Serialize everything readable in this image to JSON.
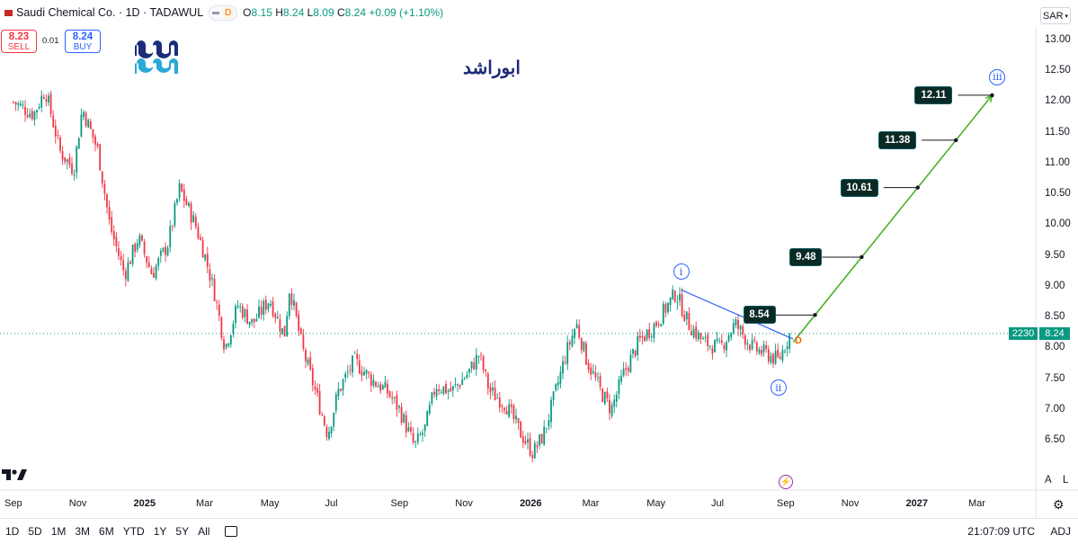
{
  "header": {
    "symbol": "Saudi Chemical Co. · 1D · TADAWUL",
    "d_badge": "D",
    "ohlc": {
      "o_label": "O",
      "o": "8.15",
      "h_label": "H",
      "h": "8.24",
      "l_label": "L",
      "l": "8.09",
      "c_label": "C",
      "c": "8.24",
      "change": "+0.09 (+1.10%)"
    },
    "currency": "SAR"
  },
  "trade": {
    "sell_price": "8.23",
    "sell_label": "SELL",
    "spread": "0.01",
    "buy_price": "8.24",
    "buy_label": "BUY"
  },
  "watermark_text": "ابوراشد",
  "colors": {
    "up": "#089981",
    "down": "#f23645",
    "projection": "#4caf28",
    "trendline": "#2962ff",
    "target_box": "#0b2a25"
  },
  "chart_data": {
    "type": "candlestick",
    "y_ticks": [
      "13.00",
      "12.50",
      "12.00",
      "11.50",
      "11.00",
      "10.50",
      "10.00",
      "9.50",
      "9.00",
      "8.50",
      "8.00",
      "7.50",
      "7.00",
      "6.50"
    ],
    "ylim": [
      6.2,
      13.2
    ],
    "x_ticks": [
      "Sep",
      "Nov",
      "2025",
      "Mar",
      "May",
      "Jul",
      "Sep",
      "Nov",
      "2026",
      "Mar",
      "May",
      "Jul",
      "Sep",
      "Nov",
      "2027",
      "Mar"
    ],
    "bold_x_ticks": [
      "2025",
      "2026",
      "2027"
    ],
    "x_tick_dates": [
      "2024-09",
      "2024-11",
      "2025-01",
      "2025-03",
      "2025-05",
      "2025-07",
      "2025-09",
      "2025-11",
      "2026-01",
      "2026-03",
      "2026-05",
      "2026-07",
      "2026-09",
      "2026-11",
      "2027-01",
      "2027-03"
    ],
    "price_path": [
      [
        "2024-09",
        12.0
      ],
      [
        "2024-09-20",
        11.8
      ],
      [
        "2024-10-01",
        12.2
      ],
      [
        "2024-10-15",
        11.2
      ],
      [
        "2024-10-28",
        10.9
      ],
      [
        "2024-11-05",
        11.9
      ],
      [
        "2024-11-20",
        11.2
      ],
      [
        "2024-12-01",
        10.0
      ],
      [
        "2024-12-15",
        9.2
      ],
      [
        "2024-12-28",
        9.8
      ],
      [
        "2025-01-10",
        9.2
      ],
      [
        "2025-01-25",
        9.7
      ],
      [
        "2025-02-05",
        10.6
      ],
      [
        "2025-02-20",
        10.0
      ],
      [
        "2025-03-01",
        9.5
      ],
      [
        "2025-03-10",
        8.9
      ],
      [
        "2025-03-20",
        8.0
      ],
      [
        "2025-04-01",
        8.7
      ],
      [
        "2025-04-15",
        8.4
      ],
      [
        "2025-05-01",
        8.8
      ],
      [
        "2025-05-15",
        8.2
      ],
      [
        "2025-05-20",
        9.0
      ],
      [
        "2025-06-01",
        8.0
      ],
      [
        "2025-06-15",
        7.2
      ],
      [
        "2025-06-25",
        6.6
      ],
      [
        "2025-07-05",
        7.3
      ],
      [
        "2025-07-20",
        7.8
      ],
      [
        "2025-08-05",
        7.5
      ],
      [
        "2025-08-20",
        7.3
      ],
      [
        "2025-09-01",
        7.0
      ],
      [
        "2025-09-15",
        6.4
      ],
      [
        "2025-09-25",
        6.7
      ],
      [
        "2025-10-05",
        7.4
      ],
      [
        "2025-10-20",
        7.3
      ],
      [
        "2025-11-05",
        7.6
      ],
      [
        "2025-11-15",
        7.9
      ],
      [
        "2025-11-25",
        7.3
      ],
      [
        "2025-12-10",
        7.1
      ],
      [
        "2025-12-25",
        6.6
      ],
      [
        "2026-01-05",
        6.3
      ],
      [
        "2026-01-15",
        6.6
      ],
      [
        "2026-01-25",
        7.2
      ],
      [
        "2026-02-05",
        7.9
      ],
      [
        "2026-02-15",
        8.4
      ],
      [
        "2026-02-25",
        7.8
      ],
      [
        "2026-03-10",
        7.3
      ],
      [
        "2026-03-20",
        7.0
      ],
      [
        "2026-04-01",
        7.6
      ],
      [
        "2026-04-15",
        8.1
      ],
      [
        "2026-05-01",
        8.4
      ],
      [
        "2026-05-20",
        8.9
      ],
      [
        "2026-06-01",
        8.4
      ],
      [
        "2026-06-15",
        8.1
      ],
      [
        "2026-07-01",
        8.0
      ],
      [
        "2026-07-15",
        8.4
      ],
      [
        "2026-08-01",
        8.0
      ],
      [
        "2026-08-15",
        7.9
      ],
      [
        "2026-08-25",
        7.8
      ],
      [
        "2026-09-05",
        8.24
      ]
    ],
    "last_price": "8.24",
    "last_volume_label": "2230",
    "trendline": {
      "from": [
        "2026-05-25",
        8.95
      ],
      "to": [
        "2026-09-08",
        8.15
      ]
    },
    "projection": {
      "from": [
        "2026-09-08",
        8.1
      ],
      "to": [
        "2027-03-15",
        12.11
      ]
    },
    "targets": [
      {
        "label": "8.54",
        "value": 8.54
      },
      {
        "label": "9.48",
        "value": 9.48
      },
      {
        "label": "10.61",
        "value": 10.61
      },
      {
        "label": "11.38",
        "value": 11.38
      },
      {
        "label": "12.11",
        "value": 12.11
      }
    ],
    "waves": [
      {
        "label": "i",
        "date": "2026-05-25",
        "value": 8.95,
        "position": "above"
      },
      {
        "label": "ii",
        "date": "2026-08-25",
        "value": 7.72,
        "position": "below"
      },
      {
        "label": "iii",
        "date": "2027-03-20",
        "value": 12.11,
        "position": "above"
      }
    ],
    "marker_d": "D"
  },
  "right_controls": {
    "a": "A",
    "l": "L"
  },
  "bottom": {
    "timeframes": [
      "1D",
      "5D",
      "1M",
      "3M",
      "6M",
      "YTD",
      "1Y",
      "5Y",
      "All"
    ],
    "clock": "21:07:09 UTC",
    "adj": "ADJ"
  }
}
